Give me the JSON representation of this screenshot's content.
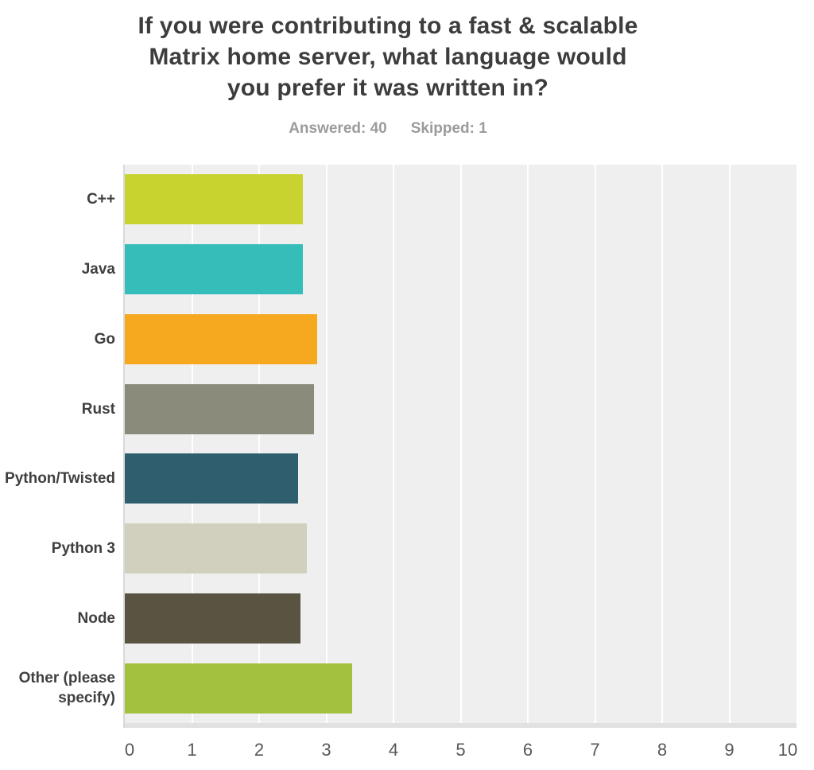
{
  "header": {
    "title_lines": [
      "If you were contributing to a fast & scalable",
      "Matrix home server, what language would",
      "you prefer it was written in?"
    ],
    "answered_label": "Answered: 40",
    "skipped_label": "Skipped: 1"
  },
  "chart_data": {
    "type": "bar",
    "orientation": "horizontal",
    "title": "If you were contributing to a fast & scalable Matrix home server, what language would you prefer it was written in?",
    "answered": 40,
    "skipped": 1,
    "categories": [
      "C++",
      "Java",
      "Go",
      "Rust",
      "Python/Twisted",
      "Python 3",
      "Node",
      "Other (please specify)"
    ],
    "values": [
      2.65,
      2.65,
      2.86,
      2.82,
      2.58,
      2.71,
      2.61,
      3.38
    ],
    "bar_colors": [
      "#c9d32f",
      "#36bdb9",
      "#f6a91f",
      "#8a8b7a",
      "#2f5f6f",
      "#d1d0bf",
      "#585441",
      "#a3c13e"
    ],
    "xlabel": "",
    "ylabel": "",
    "xlim": [
      0,
      10
    ],
    "x_ticks": [
      0,
      1,
      2,
      3,
      4,
      5,
      6,
      7,
      8,
      9,
      10
    ],
    "grid": true,
    "legend": "none",
    "colors": {
      "plot_background": "#efeff0",
      "gridline": "#ffffff",
      "axis_border": "#d9d9d9",
      "axis_strip": "#e1e1e2",
      "title_text": "#3d3d3d",
      "label_text": "#3f3f3f",
      "tick_text": "#56585b",
      "stats_text": "#9b9b9b"
    }
  }
}
